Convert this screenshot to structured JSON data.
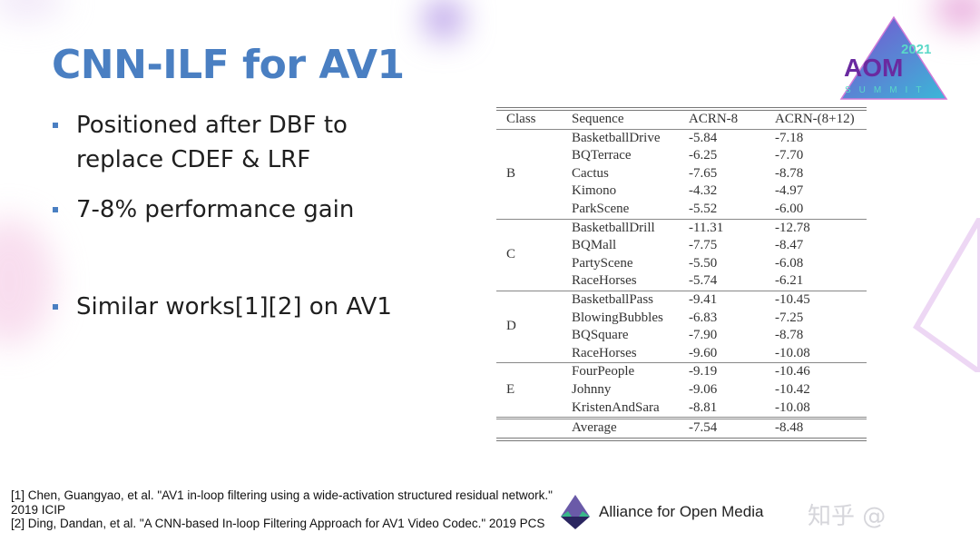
{
  "slide": {
    "title": "CNN-ILF for AV1",
    "bullets": [
      {
        "line1": "Positioned after DBF to",
        "line2": "replace CDEF & LRF"
      },
      {
        "line1": "7-8% performance gain"
      },
      {
        "line1": "Similar works[1][2] on AV1"
      }
    ],
    "accent_color": "#4a7fc2"
  },
  "logo": {
    "year": "2021",
    "name": "AOM",
    "subtitle": "SUMMIT"
  },
  "table": {
    "headers": [
      "Class",
      "Sequence",
      "ACRN-8",
      "ACRN-(8+12)"
    ],
    "groups": [
      {
        "class": "B",
        "rows": [
          [
            "BasketballDrive",
            "-5.84",
            "-7.18"
          ],
          [
            "BQTerrace",
            "-6.25",
            "-7.70"
          ],
          [
            "Cactus",
            "-7.65",
            "-8.78"
          ],
          [
            "Kimono",
            "-4.32",
            "-4.97"
          ],
          [
            "ParkScene",
            "-5.52",
            "-6.00"
          ]
        ]
      },
      {
        "class": "C",
        "rows": [
          [
            "BasketballDrill",
            "-11.31",
            "-12.78"
          ],
          [
            "BQMall",
            "-7.75",
            "-8.47"
          ],
          [
            "PartyScene",
            "-5.50",
            "-6.08"
          ],
          [
            "RaceHorses",
            "-5.74",
            "-6.21"
          ]
        ]
      },
      {
        "class": "D",
        "rows": [
          [
            "BasketballPass",
            "-9.41",
            "-10.45"
          ],
          [
            "BlowingBubbles",
            "-6.83",
            "-7.25"
          ],
          [
            "BQSquare",
            "-7.90",
            "-8.78"
          ],
          [
            "RaceHorses",
            "-9.60",
            "-10.08"
          ]
        ]
      },
      {
        "class": "E",
        "rows": [
          [
            "FourPeople",
            "-9.19",
            "-10.46"
          ],
          [
            "Johnny",
            "-9.06",
            "-10.42"
          ],
          [
            "KristenAndSara",
            "-8.81",
            "-10.08"
          ]
        ]
      }
    ],
    "average": [
      "Average",
      "-7.54",
      "-8.48"
    ]
  },
  "references": [
    "[1] Chen, Guangyao, et al. \"AV1 in-loop filtering using a wide-activation structured residual network.\" 2019 ICIP",
    "[2] Ding, Dandan, et al. \"A CNN-based In-loop Filtering Approach for AV1 Video Codec.\" 2019 PCS"
  ],
  "footer": {
    "org": "Alliance for Open Media",
    "watermark": "知乎 @"
  }
}
